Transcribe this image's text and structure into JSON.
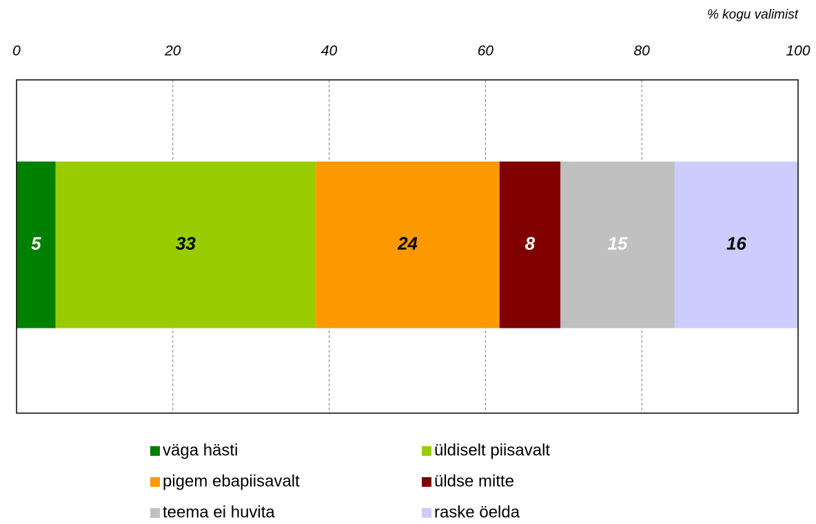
{
  "chart_data": {
    "type": "stacked_bar",
    "orientation": "horizontal",
    "x_label": "% kogu valimist",
    "categories": [
      null
    ],
    "series": [
      {
        "name": "väga hästi",
        "color": "#008000",
        "label_color": "#ffffff",
        "values": [
          5.0
        ],
        "value_labels": [
          "5"
        ]
      },
      {
        "name": "üldiselt piisavalt",
        "color": "#99cc00",
        "label_color": "#000000",
        "values": [
          33.3
        ],
        "value_labels": [
          "33"
        ]
      },
      {
        "name": "pigem ebapiisavalt",
        "color": "#ff9900",
        "label_color": "#000000",
        "values": [
          23.5
        ],
        "value_labels": [
          "24"
        ]
      },
      {
        "name": "üldse mitte",
        "color": "#800000",
        "label_color": "#ffffff",
        "values": [
          7.8
        ],
        "value_labels": [
          "8"
        ]
      },
      {
        "name": "teema ei huvita",
        "color": "#c0c0c0",
        "label_color": "#ffffff",
        "values": [
          14.6
        ],
        "value_labels": [
          "15"
        ]
      },
      {
        "name": "raske öelda",
        "color": "#ccccff",
        "label_color": "#000000",
        "values": [
          15.8
        ],
        "value_labels": [
          "16"
        ]
      }
    ],
    "xlim": [
      0,
      100
    ],
    "xticks": [
      0,
      20,
      40,
      60,
      80,
      100
    ],
    "grid": true,
    "legend": "bottom"
  }
}
